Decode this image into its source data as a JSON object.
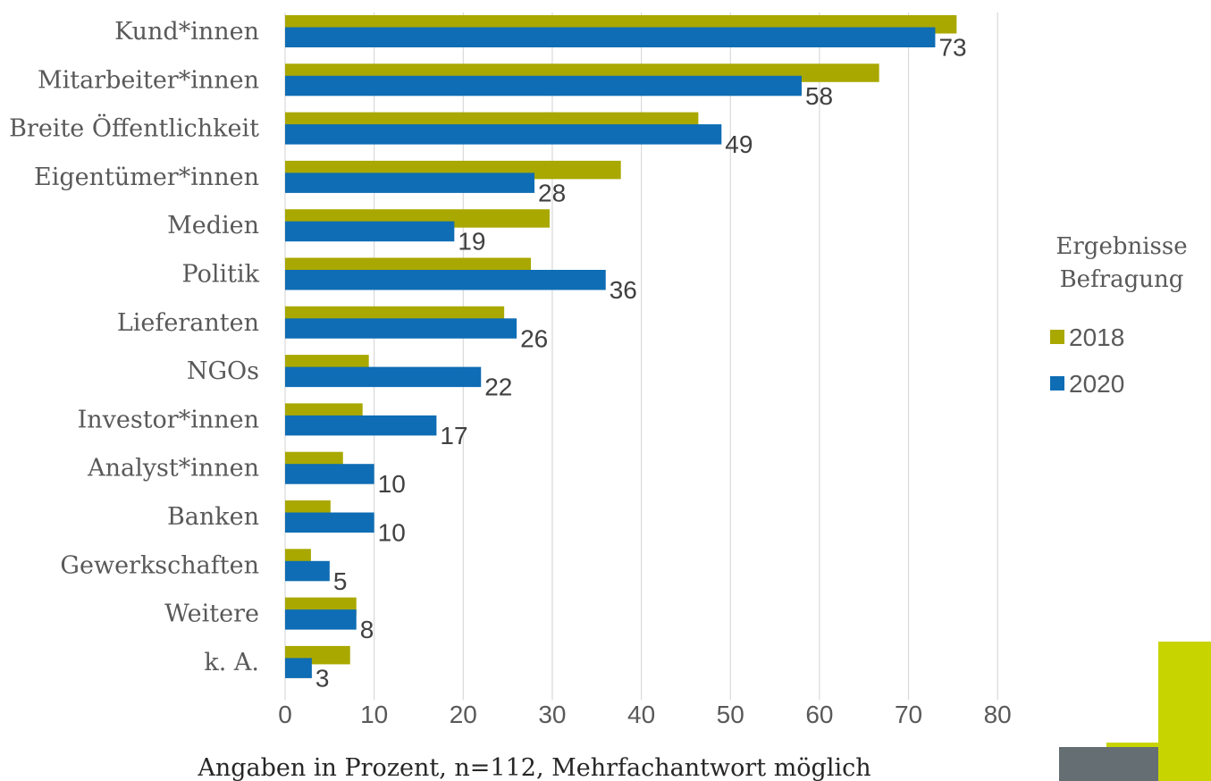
{
  "chart_data": {
    "type": "bar",
    "orientation": "horizontal",
    "categories": [
      "Kund*innen",
      "Mitarbeiter*innen",
      "Breite Öffentlichkeit",
      "Eigentümer*innen",
      "Medien",
      "Politik",
      "Lieferanten",
      "NGOs",
      "Investor*innen",
      "Analyst*innen",
      "Banken",
      "Gewerkschaften",
      "Weitere",
      "k. A."
    ],
    "series": [
      {
        "name": "2018",
        "color": "#a9a800",
        "values": [
          75.4,
          66.7,
          46.4,
          37.7,
          29.7,
          27.6,
          24.6,
          9.4,
          8.7,
          6.5,
          5.1,
          2.9,
          8.0,
          7.3
        ]
      },
      {
        "name": "2020",
        "color": "#0e6db4",
        "values": [
          73,
          58,
          49,
          28,
          19,
          36,
          26,
          22,
          17,
          10,
          10,
          5,
          8,
          3
        ],
        "data_labels": [
          "73",
          "58",
          "49",
          "28",
          "19",
          "36",
          "26",
          "22",
          "17",
          "10",
          "10",
          "5",
          "8",
          "3"
        ]
      }
    ],
    "xlim": [
      0,
      80
    ],
    "xticks": [
      "0",
      "10",
      "20",
      "30",
      "40",
      "50",
      "60",
      "70",
      "80"
    ],
    "xlabel": "Angaben in Prozent, n=112, Mehrfachantwort möglich",
    "ylabel": "",
    "grid": "vertical",
    "legend": {
      "title_lines": [
        "Ergebnisse",
        "Befragung"
      ],
      "placement": "right"
    }
  },
  "decor": {
    "dark": "#646e73",
    "lime": "#c8d400",
    "gridline": "#d9d9d9"
  }
}
